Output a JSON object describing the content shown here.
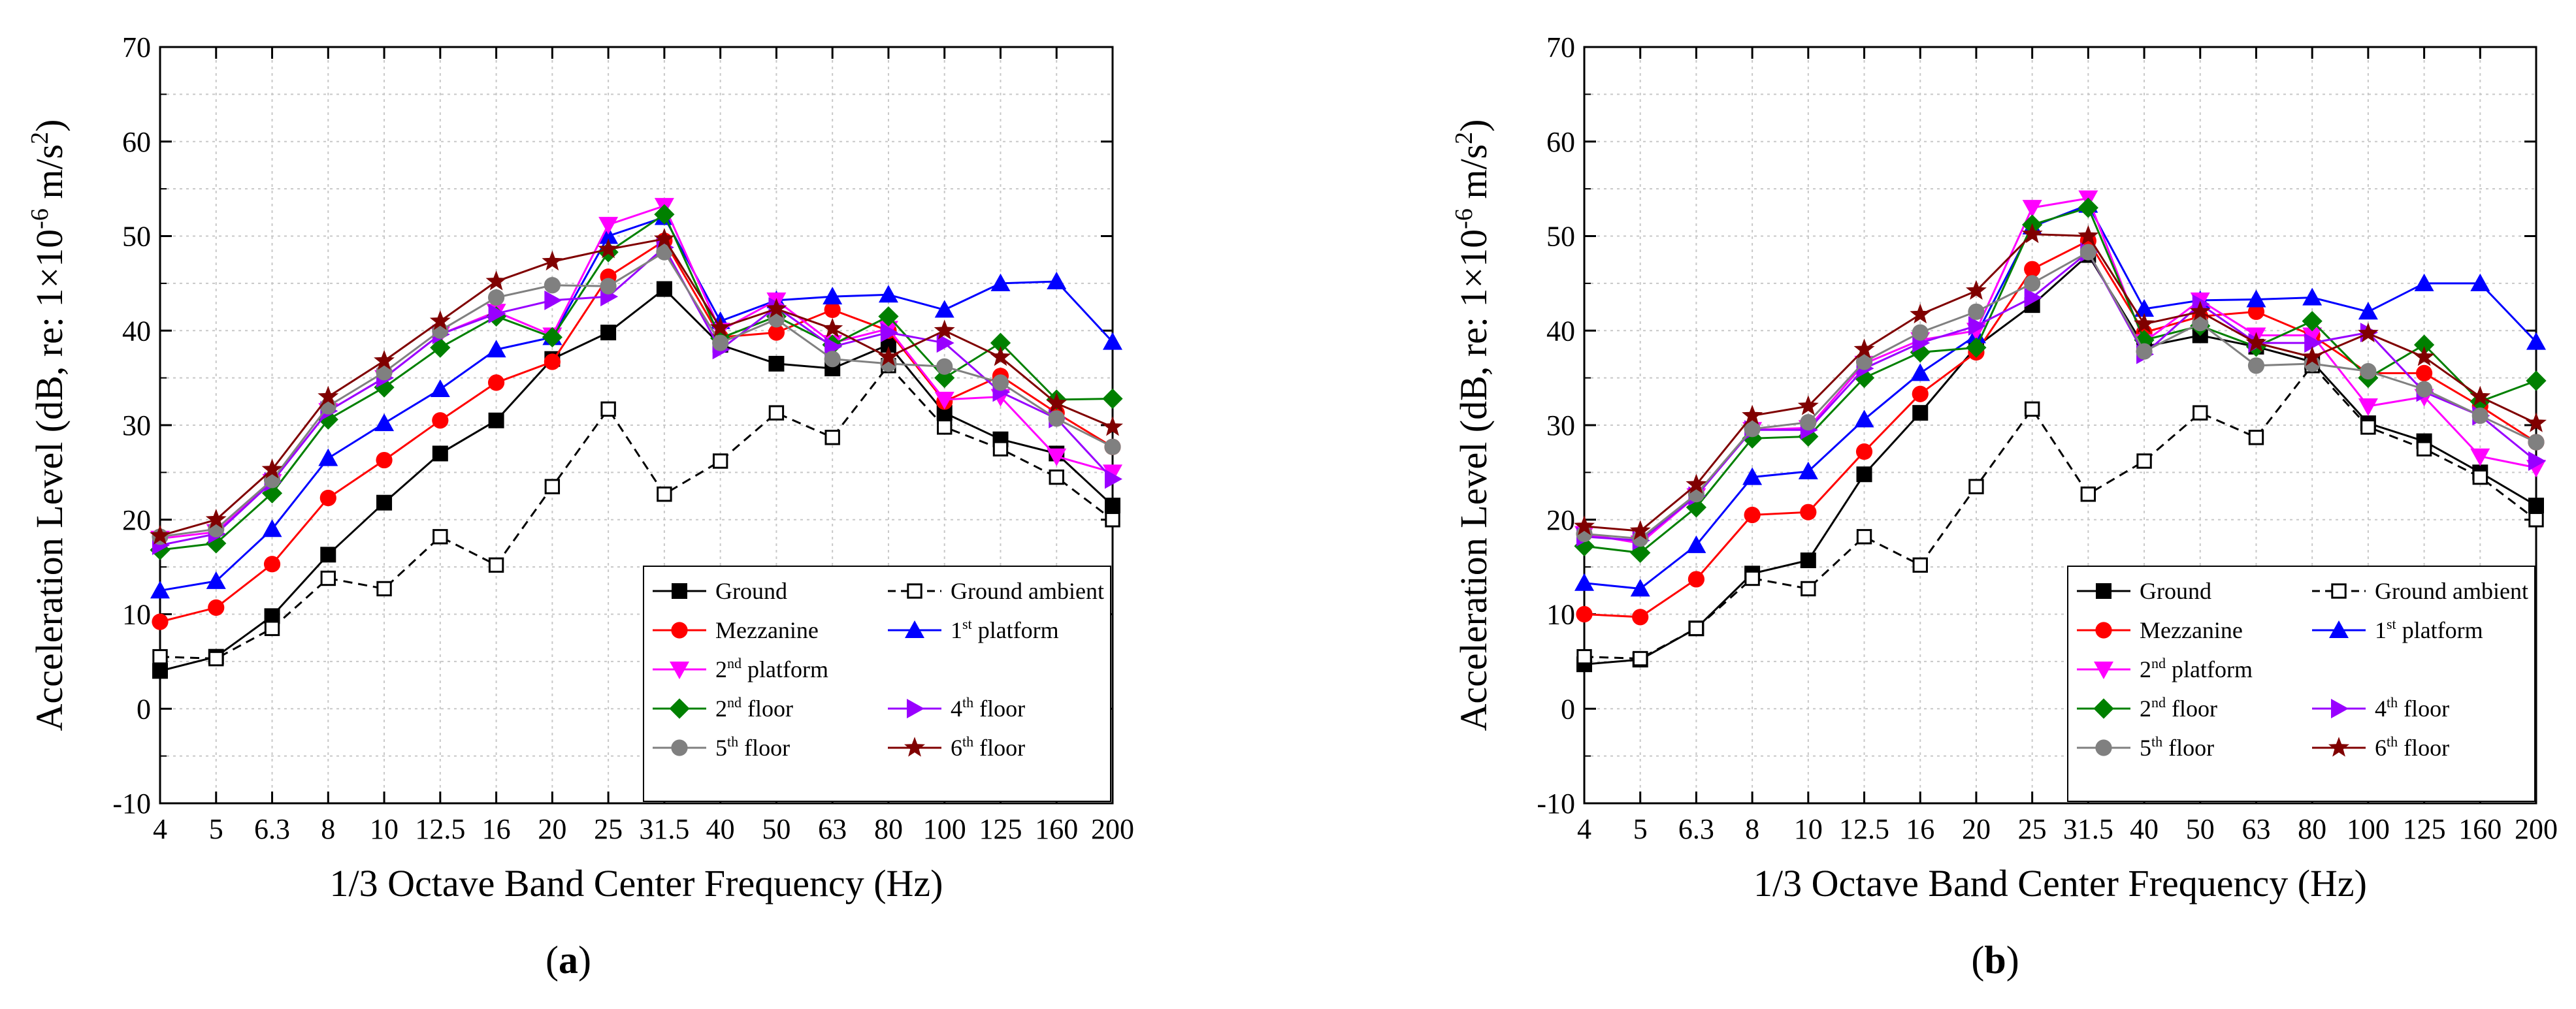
{
  "figure": {
    "panels": [
      {
        "label_open": "(",
        "label_letter": "a",
        "label_close": ")"
      },
      {
        "label_open": "(",
        "label_letter": "b",
        "label_close": ")"
      }
    ]
  },
  "chart_data": [
    {
      "type": "line",
      "panel": "a",
      "title": "",
      "xlabel": "1/3 Octave Band Center Frequency (Hz)",
      "ylabel_parts": {
        "main": "Acceleration Level (dB, re: 1×10",
        "exp": "-6",
        "mid": " m/s",
        "exp2": "2",
        "end": ")"
      },
      "categories": [
        "4",
        "5",
        "6.3",
        "8",
        "10",
        "12.5",
        "16",
        "20",
        "25",
        "31.5",
        "40",
        "50",
        "63",
        "80",
        "100",
        "125",
        "160",
        "200"
      ],
      "ylim": [
        -10,
        70
      ],
      "yticks": [
        "-10",
        "0",
        "10",
        "20",
        "30",
        "40",
        "50",
        "60",
        "70"
      ],
      "grid": true,
      "legend_position": "bottom-right",
      "series": [
        {
          "name": "Ground",
          "sup": "",
          "suffix": "",
          "color": "#000000",
          "marker": "square",
          "dashed": false,
          "values": [
            4,
            5.5,
            9.8,
            16.3,
            21.8,
            27,
            30.5,
            37,
            39.8,
            44.4,
            38.5,
            36.5,
            36,
            38.5,
            31.3,
            28.5,
            27,
            21.5
          ]
        },
        {
          "name": "Ground ambient",
          "sup": "",
          "suffix": "",
          "color": "#000000",
          "marker": "open-square",
          "dashed": true,
          "values": [
            5.5,
            5.3,
            8.5,
            13.8,
            12.7,
            18.2,
            15.2,
            23.5,
            31.7,
            22.7,
            26.2,
            31.3,
            28.7,
            36.3,
            29.8,
            27.5,
            24.5,
            20
          ]
        },
        {
          "name": "Mezzanine",
          "sup": "",
          "suffix": "",
          "color": "#ff0000",
          "marker": "circle",
          "dashed": false,
          "values": [
            9.2,
            10.7,
            15.3,
            22.3,
            26.3,
            30.5,
            34.5,
            36.7,
            45.7,
            49.5,
            39.3,
            39.8,
            42.2,
            40,
            32.5,
            35.2,
            31.3,
            27.7
          ]
        },
        {
          "name": "1",
          "sup": "st",
          "suffix": " platform",
          "color": "#0000ff",
          "marker": "triangle-up",
          "dashed": false,
          "values": [
            12.5,
            13.5,
            19,
            26.5,
            30.2,
            33.8,
            38,
            39.3,
            50,
            52,
            41,
            43.2,
            43.6,
            43.8,
            42.2,
            45,
            45.2,
            38.8
          ]
        },
        {
          "name": "2",
          "sup": "nd",
          "suffix": " platform",
          "color": "#ff00ff",
          "marker": "triangle-down",
          "dashed": false,
          "values": [
            18,
            18.7,
            24,
            31.5,
            35,
            39.6,
            42,
            39.5,
            51.2,
            53.2,
            40,
            43.2,
            38.7,
            40.2,
            32.7,
            33,
            26.7,
            25
          ]
        },
        {
          "name": "2",
          "sup": "nd",
          "suffix": " floor",
          "color": "#008000",
          "marker": "diamond",
          "dashed": false,
          "values": [
            16.8,
            17.5,
            22.8,
            30.6,
            34,
            38.2,
            41.5,
            39.3,
            48.3,
            52.3,
            39.2,
            41.5,
            38.5,
            41.5,
            35,
            38.7,
            32.7,
            32.8
          ]
        },
        {
          "name": "4",
          "sup": "th",
          "suffix": " floor",
          "color": "#9900ff",
          "marker": "triangle-right",
          "dashed": false,
          "values": [
            17.3,
            18.5,
            24,
            31.5,
            35,
            39.6,
            41.8,
            43.2,
            43.6,
            48.8,
            38,
            42.5,
            38.3,
            39.8,
            38.7,
            33.5,
            30.7,
            24.3
          ]
        },
        {
          "name": "5",
          "sup": "th",
          "suffix": " floor",
          "color": "#808080",
          "marker": "circle",
          "dashed": false,
          "values": [
            18.2,
            19,
            24.2,
            32,
            35.6,
            40,
            43.5,
            44.8,
            44.7,
            48.3,
            38.7,
            41.2,
            37,
            36.5,
            36.2,
            34.5,
            30.7,
            27.7
          ]
        },
        {
          "name": "6",
          "sup": "th",
          "suffix": " floor",
          "color": "#800000",
          "marker": "star",
          "dashed": false,
          "values": [
            18.3,
            20,
            25.3,
            33,
            36.8,
            41,
            45.2,
            47.3,
            48.6,
            49.7,
            40.3,
            42.3,
            40.2,
            37.2,
            40,
            37.2,
            32.3,
            29.8
          ]
        }
      ]
    },
    {
      "type": "line",
      "panel": "b",
      "title": "",
      "xlabel": "1/3 Octave Band Center Frequency (Hz)",
      "ylabel_parts": {
        "main": "Acceleration Level (dB, re: 1×10",
        "exp": "-6",
        "mid": " m/s",
        "exp2": "2",
        "end": ")"
      },
      "categories": [
        "4",
        "5",
        "6.3",
        "8",
        "10",
        "12.5",
        "16",
        "20",
        "25",
        "31.5",
        "40",
        "50",
        "63",
        "80",
        "100",
        "125",
        "160",
        "200"
      ],
      "ylim": [
        -10,
        70
      ],
      "yticks": [
        "-10",
        "0",
        "10",
        "20",
        "30",
        "40",
        "50",
        "60",
        "70"
      ],
      "grid": true,
      "legend_position": "bottom-right",
      "series": [
        {
          "name": "Ground",
          "sup": "",
          "suffix": "",
          "color": "#000000",
          "marker": "square",
          "dashed": false,
          "values": [
            4.7,
            5.2,
            8.5,
            14.3,
            15.7,
            24.8,
            31.3,
            38.3,
            42.7,
            48,
            38.3,
            39.5,
            38.3,
            36.7,
            30.2,
            28.3,
            25,
            21.5
          ]
        },
        {
          "name": "Ground ambient",
          "sup": "",
          "suffix": "",
          "color": "#000000",
          "marker": "open-square",
          "dashed": true,
          "values": [
            5.5,
            5.3,
            8.5,
            13.8,
            12.7,
            18.2,
            15.2,
            23.5,
            31.7,
            22.7,
            26.2,
            31.3,
            28.7,
            36.3,
            29.8,
            27.5,
            24.5,
            20
          ]
        },
        {
          "name": "Mezzanine",
          "sup": "",
          "suffix": "",
          "color": "#ff0000",
          "marker": "circle",
          "dashed": false,
          "values": [
            10,
            9.7,
            13.7,
            20.5,
            20.8,
            27.2,
            33.3,
            37.7,
            46.5,
            49.5,
            39.8,
            41.5,
            42,
            39.5,
            35.5,
            35.5,
            32,
            28.2
          ]
        },
        {
          "name": "1",
          "sup": "st",
          "suffix": " platform",
          "color": "#0000ff",
          "marker": "triangle-up",
          "dashed": false,
          "values": [
            13.3,
            12.7,
            17.3,
            24.5,
            25.1,
            30.6,
            35.5,
            39.5,
            51,
            53.3,
            42.3,
            43.2,
            43.3,
            43.5,
            42,
            45,
            45,
            38.8
          ]
        },
        {
          "name": "2",
          "sup": "nd",
          "suffix": " platform",
          "color": "#ff00ff",
          "marker": "triangle-down",
          "dashed": false,
          "values": [
            18.5,
            17.5,
            22.5,
            29.5,
            29.7,
            36.5,
            39,
            40,
            53,
            54,
            38.8,
            43.2,
            39.5,
            39.5,
            32,
            33,
            26.7,
            25.5
          ]
        },
        {
          "name": "2",
          "sup": "nd",
          "suffix": " floor",
          "color": "#008000",
          "marker": "diamond",
          "dashed": false,
          "values": [
            17.2,
            16.5,
            21.3,
            28.6,
            28.8,
            35,
            37.7,
            38.2,
            51.2,
            53,
            39,
            40.5,
            38.3,
            41,
            35,
            38.5,
            32.5,
            34.7
          ]
        },
        {
          "name": "4",
          "sup": "th",
          "suffix": " floor",
          "color": "#9900ff",
          "marker": "triangle-right",
          "dashed": false,
          "values": [
            18.2,
            17.8,
            22.5,
            29.5,
            29.5,
            36,
            38.7,
            40.5,
            43.5,
            48.3,
            37.5,
            42.8,
            38.7,
            38.7,
            39.8,
            33.5,
            31,
            26.2
          ]
        },
        {
          "name": "5",
          "sup": "th",
          "suffix": " floor",
          "color": "#808080",
          "marker": "circle",
          "dashed": false,
          "values": [
            18.5,
            18,
            22.7,
            29.6,
            30.3,
            36.7,
            39.8,
            42,
            45,
            48.3,
            37.8,
            40.8,
            36.3,
            36.5,
            35.7,
            33.8,
            31,
            28.2
          ]
        },
        {
          "name": "6",
          "sup": "th",
          "suffix": " floor",
          "color": "#800000",
          "marker": "star",
          "dashed": false,
          "values": [
            19.3,
            18.8,
            23.7,
            31,
            32,
            38,
            41.7,
            44.2,
            50.2,
            50,
            40.7,
            42,
            38.7,
            37.2,
            39.7,
            37.2,
            33,
            30.2
          ]
        }
      ]
    }
  ]
}
